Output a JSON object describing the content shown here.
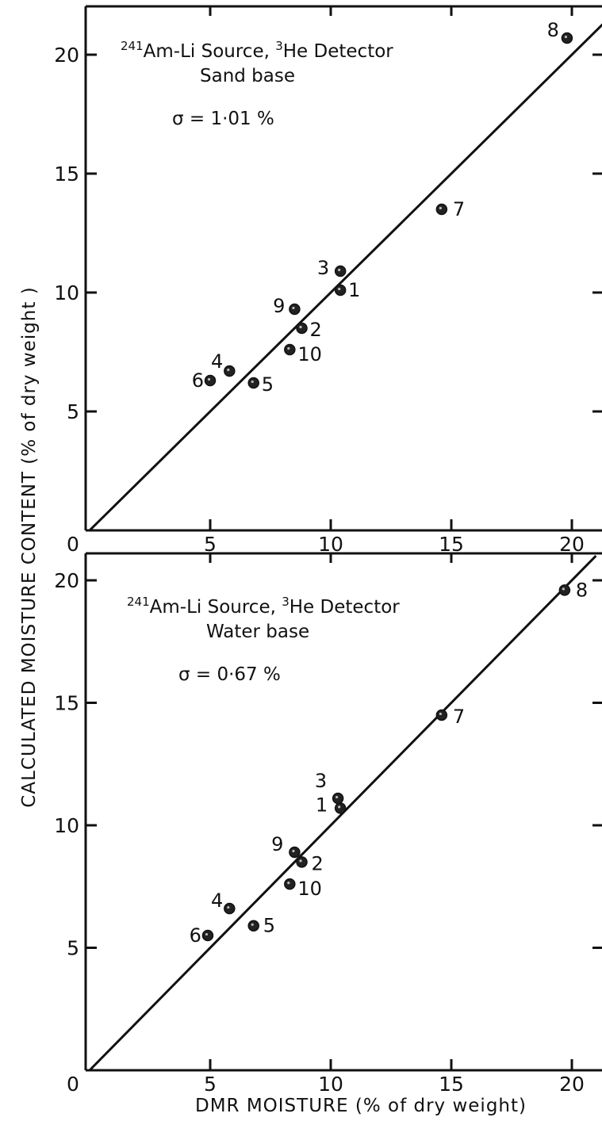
{
  "y_axis_label": "CALCULATED MOISTURE CONTENT (% of dry weight )",
  "x_axis_label": "DMR MOISTURE (% of dry weight)",
  "chart_data": [
    {
      "type": "scatter",
      "annotation": {
        "source_sup": "241",
        "source_text": "Am-Li Source, ",
        "detector_sup": "3",
        "detector_text": "He Detector",
        "base": "Sand base",
        "sigma": "σ = 1·01 %"
      },
      "xlim": [
        0,
        22
      ],
      "ylim": [
        0,
        22
      ],
      "x_ticks": [
        "0",
        "5",
        "10",
        "15",
        "20"
      ],
      "y_ticks": [
        "5",
        "10",
        "15",
        "20"
      ],
      "fit_line": [
        [
          0,
          0
        ],
        [
          22,
          22
        ]
      ],
      "points": [
        {
          "label": "1",
          "x": 10.4,
          "y": 10.1
        },
        {
          "label": "2",
          "x": 8.8,
          "y": 8.5
        },
        {
          "label": "3",
          "x": 10.4,
          "y": 10.9
        },
        {
          "label": "4",
          "x": 5.8,
          "y": 6.7
        },
        {
          "label": "5",
          "x": 6.8,
          "y": 6.2
        },
        {
          "label": "6",
          "x": 5.0,
          "y": 6.3
        },
        {
          "label": "7",
          "x": 14.6,
          "y": 13.5
        },
        {
          "label": "8",
          "x": 19.8,
          "y": 20.7
        },
        {
          "label": "9",
          "x": 8.5,
          "y": 9.3
        },
        {
          "label": "10",
          "x": 8.3,
          "y": 7.6
        }
      ]
    },
    {
      "type": "scatter",
      "annotation": {
        "source_sup": "241",
        "source_text": "Am-Li Source, ",
        "detector_sup": "3",
        "detector_text": "He Detector",
        "base": "Water base",
        "sigma": "σ = 0·67 %"
      },
      "xlim": [
        0,
        22
      ],
      "ylim": [
        0,
        21
      ],
      "x_ticks": [
        "0",
        "5",
        "10",
        "15",
        "20"
      ],
      "y_ticks": [
        "5",
        "10",
        "15",
        "20"
      ],
      "fit_line": [
        [
          0,
          0
        ],
        [
          21,
          21
        ]
      ],
      "points": [
        {
          "label": "1",
          "x": 10.4,
          "y": 10.7
        },
        {
          "label": "2",
          "x": 8.8,
          "y": 8.5
        },
        {
          "label": "3",
          "x": 10.3,
          "y": 11.1
        },
        {
          "label": "4",
          "x": 5.8,
          "y": 6.6
        },
        {
          "label": "5",
          "x": 6.8,
          "y": 5.9
        },
        {
          "label": "6",
          "x": 4.9,
          "y": 5.5
        },
        {
          "label": "7",
          "x": 14.6,
          "y": 14.5
        },
        {
          "label": "8",
          "x": 19.7,
          "y": 19.6
        },
        {
          "label": "9",
          "x": 8.5,
          "y": 8.9
        },
        {
          "label": "10",
          "x": 8.3,
          "y": 7.6
        }
      ]
    }
  ]
}
